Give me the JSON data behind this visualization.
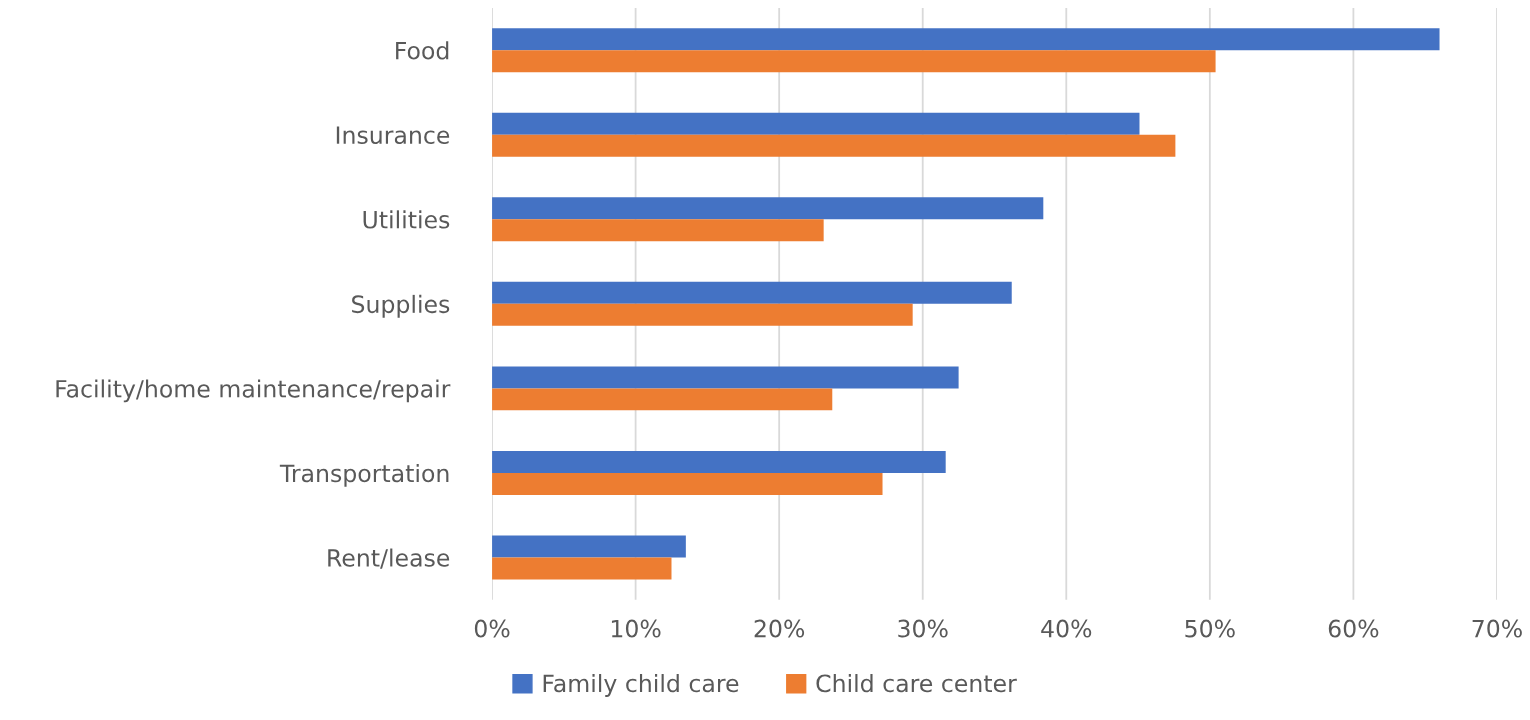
{
  "chart_data": {
    "type": "bar",
    "orientation": "horizontal",
    "categories": [
      "Food",
      "Insurance",
      "Utilities",
      "Supplies",
      "Facility/home maintenance/repair",
      "Transportation",
      "Rent/lease"
    ],
    "series": [
      {
        "name": "Family child care",
        "color": "#4472c4",
        "values": [
          66,
          45.1,
          38.4,
          36.2,
          32.5,
          31.6,
          13.5
        ]
      },
      {
        "name": "Child care center",
        "color": "#ed7d31",
        "values": [
          50.4,
          47.6,
          23.1,
          29.3,
          23.7,
          27.2,
          12.5
        ]
      }
    ],
    "xlim": [
      0,
      70
    ],
    "xticks": [
      {
        "value": 0,
        "label": "0%"
      },
      {
        "value": 10,
        "label": "10%"
      },
      {
        "value": 20,
        "label": "20%"
      },
      {
        "value": 30,
        "label": "30%"
      },
      {
        "value": 40,
        "label": "40%"
      },
      {
        "value": 50,
        "label": "50%"
      },
      {
        "value": 60,
        "label": "60%"
      },
      {
        "value": 70,
        "label": "70%"
      }
    ],
    "grid": "x",
    "legend": "bottom"
  }
}
